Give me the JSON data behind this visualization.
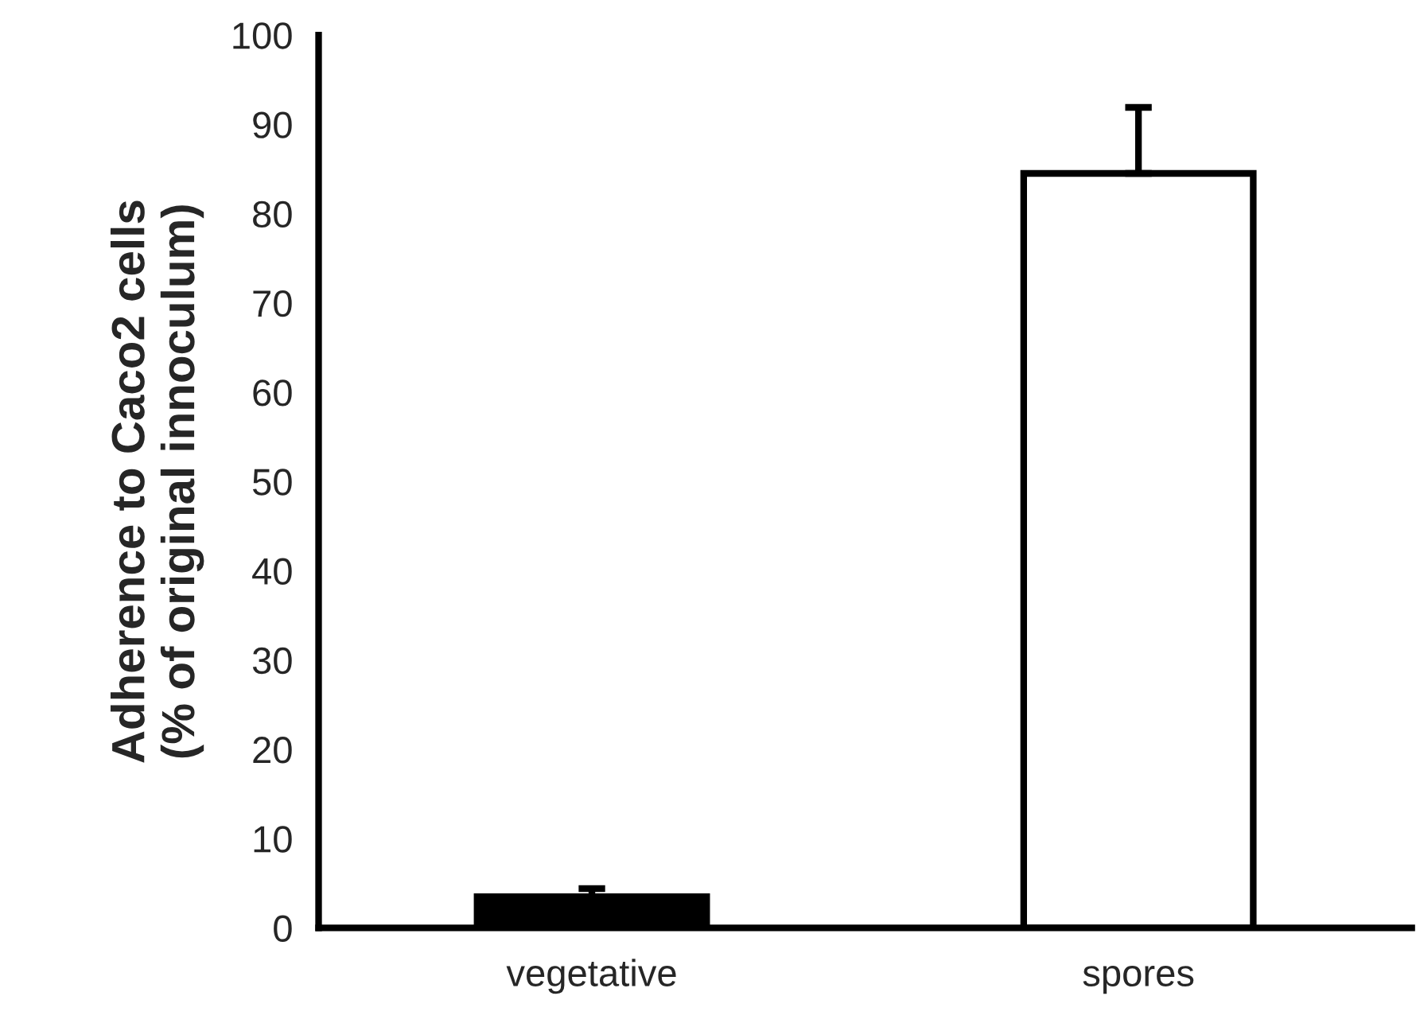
{
  "chart_data": {
    "type": "bar",
    "ylabel": "Adherence to Caco2 cells\n(% of original innoculum)",
    "categories": [
      "vegetative",
      "spores"
    ],
    "values": [
      3.5,
      84.5
    ],
    "colors": [
      "#000000",
      "#ffffff"
    ],
    "errors": [
      [
        3.5,
        4.4
      ],
      [
        84.5,
        91.9
      ]
    ],
    "ylim": [
      0,
      100
    ],
    "yticks": [
      0,
      10,
      20,
      30,
      40,
      50,
      60,
      70,
      80,
      90,
      100
    ],
    "grid": false,
    "legend": false
  }
}
